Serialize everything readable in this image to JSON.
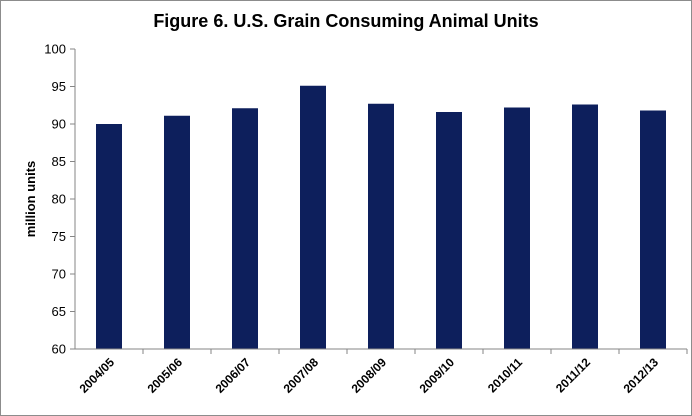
{
  "chart_data": {
    "type": "bar",
    "title": "Figure 6. U.S. Grain Consuming Animal Units",
    "xlabel": "",
    "ylabel": "million units",
    "categories": [
      "2004/05",
      "2005/06",
      "2006/07",
      "2007/08",
      "2008/09",
      "2009/10",
      "2010/11",
      "2011/12",
      "2012/13"
    ],
    "values": [
      90.0,
      91.1,
      92.1,
      95.1,
      92.7,
      91.6,
      92.2,
      92.6,
      91.8
    ],
    "ylim": [
      60,
      100
    ],
    "yticks": [
      60,
      65,
      70,
      75,
      80,
      85,
      90,
      95,
      100
    ],
    "grid": false,
    "legend": "none",
    "bar_color": "#0d1f5c"
  }
}
